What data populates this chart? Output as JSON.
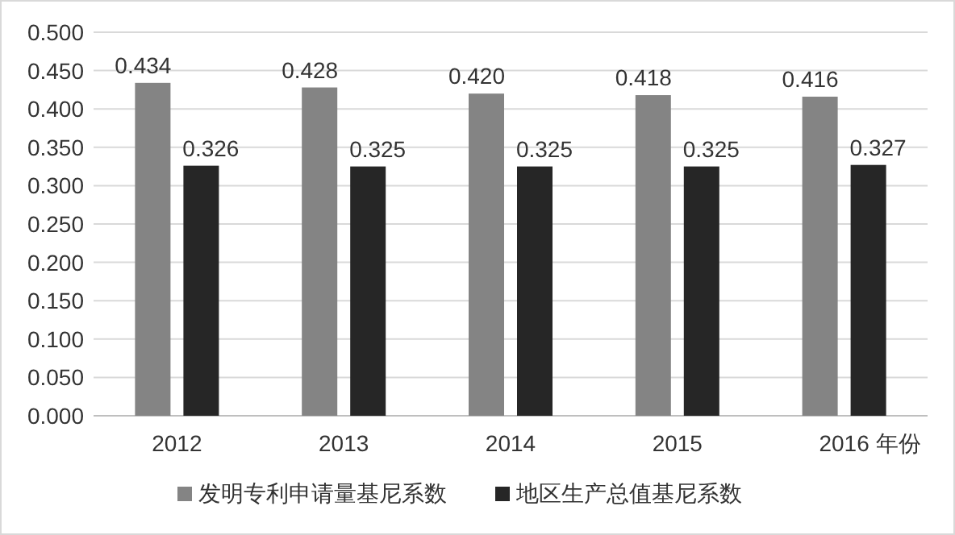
{
  "chart_data": {
    "type": "bar",
    "xlabel": "年份",
    "categories": [
      "2012",
      "2013",
      "2014",
      "2015",
      "2016"
    ],
    "series": [
      {
        "name": "发明专利申请量基尼系数",
        "color": "#848484",
        "values": [
          0.434,
          0.428,
          0.42,
          0.418,
          0.416
        ],
        "value_labels": [
          "0.434",
          "0.428",
          "0.420",
          "0.418",
          "0.416"
        ]
      },
      {
        "name": "地区生产总值基尼系数",
        "color": "#262626",
        "values": [
          0.326,
          0.325,
          0.325,
          0.325,
          0.327
        ],
        "value_labels": [
          "0.326",
          "0.325",
          "0.325",
          "0.325",
          "0.327"
        ]
      }
    ],
    "ylim": [
      0,
      0.5
    ],
    "yticks": [
      {
        "value": 0,
        "label": "0.000"
      },
      {
        "value": 0.05,
        "label": "0.050"
      },
      {
        "value": 0.1,
        "label": "0.100"
      },
      {
        "value": 0.15,
        "label": "0.150"
      },
      {
        "value": 0.2,
        "label": "0.200"
      },
      {
        "value": 0.25,
        "label": "0.250"
      },
      {
        "value": 0.3,
        "label": "0.300"
      },
      {
        "value": 0.35,
        "label": "0.350"
      },
      {
        "value": 0.4,
        "label": "0.400"
      },
      {
        "value": 0.45,
        "label": "0.450"
      },
      {
        "value": 0.5,
        "label": "0.500"
      }
    ],
    "grid": "y",
    "legend": "bottom"
  }
}
